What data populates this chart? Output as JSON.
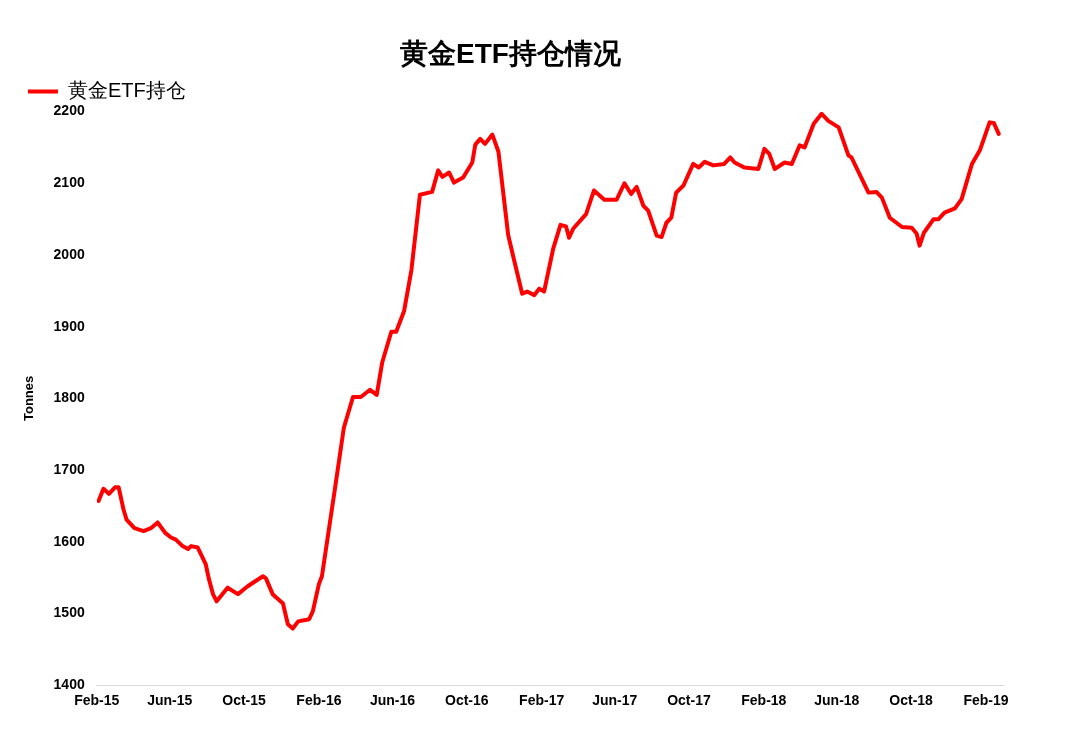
{
  "chart_data": {
    "type": "line",
    "title": "黄金ETF持仓情况",
    "ylabel": "Tonnes",
    "legend": "top left",
    "grid": false,
    "marker": "none",
    "line_style": "solid",
    "xlim": [
      "2015-02-01",
      "2019-03-01"
    ],
    "xticks": [
      {
        "value": "2015-02-01",
        "label": "Feb-15"
      },
      {
        "value": "2015-06-01",
        "label": "Jun-15"
      },
      {
        "value": "2015-10-01",
        "label": "Oct-15"
      },
      {
        "value": "2016-02-01",
        "label": "Feb-16"
      },
      {
        "value": "2016-06-01",
        "label": "Jun-16"
      },
      {
        "value": "2016-10-01",
        "label": "Oct-16"
      },
      {
        "value": "2017-02-01",
        "label": "Feb-17"
      },
      {
        "value": "2017-06-01",
        "label": "Jun-17"
      },
      {
        "value": "2017-10-01",
        "label": "Oct-17"
      },
      {
        "value": "2018-02-01",
        "label": "Feb-18"
      },
      {
        "value": "2018-06-01",
        "label": "Jun-18"
      },
      {
        "value": "2018-10-01",
        "label": "Oct-18"
      },
      {
        "value": "2019-02-01",
        "label": "Feb-19"
      }
    ],
    "ylim": [
      1400,
      2200
    ],
    "yticks": [
      1400,
      1500,
      1600,
      1700,
      1800,
      1900,
      2000,
      2100,
      2200
    ],
    "x": [
      "2015-02-04",
      "2015-02-12",
      "2015-02-21",
      "2015-03-03",
      "2015-03-09",
      "2015-03-17",
      "2015-03-22",
      "2015-04-04",
      "2015-04-19",
      "2015-05-01",
      "2015-05-12",
      "2015-05-25",
      "2015-06-03",
      "2015-06-11",
      "2015-06-22",
      "2015-07-01",
      "2015-07-06",
      "2015-07-17",
      "2015-07-30",
      "2015-08-04",
      "2015-08-11",
      "2015-08-17",
      "2015-09-04",
      "2015-09-21",
      "2015-10-07",
      "2015-11-01",
      "2015-11-06",
      "2015-11-17",
      "2015-12-04",
      "2015-12-12",
      "2015-12-20",
      "2015-12-29",
      "2016-01-16",
      "2016-01-22",
      "2016-02-01",
      "2016-02-06",
      "2016-02-27",
      "2016-03-13",
      "2016-03-28",
      "2016-04-10",
      "2016-04-25",
      "2016-05-06",
      "2016-05-15",
      "2016-05-30",
      "2016-06-07",
      "2016-06-20",
      "2016-07-02",
      "2016-07-16",
      "2016-08-05",
      "2016-08-15",
      "2016-08-22",
      "2016-09-02",
      "2016-09-10",
      "2016-09-25",
      "2016-10-10",
      "2016-10-15",
      "2016-10-23",
      "2016-10-31",
      "2016-11-12",
      "2016-11-22",
      "2016-12-08",
      "2016-12-16",
      "2016-12-31",
      "2017-01-08",
      "2017-01-20",
      "2017-01-28",
      "2017-02-05",
      "2017-02-20",
      "2017-03-04",
      "2017-03-13",
      "2017-03-18",
      "2017-03-25",
      "2017-04-15",
      "2017-04-28",
      "2017-05-15",
      "2017-06-04",
      "2017-06-17",
      "2017-06-28",
      "2017-07-07",
      "2017-07-18",
      "2017-07-26",
      "2017-08-09",
      "2017-08-17",
      "2017-08-25",
      "2017-09-02",
      "2017-09-10",
      "2017-09-22",
      "2017-10-08",
      "2017-10-17",
      "2017-10-27",
      "2017-11-10",
      "2017-11-28",
      "2017-12-08",
      "2017-12-15",
      "2017-12-31",
      "2018-01-23",
      "2018-02-02",
      "2018-02-10",
      "2018-02-19",
      "2018-03-07",
      "2018-03-19",
      "2018-04-01",
      "2018-04-09",
      "2018-04-24",
      "2018-05-07",
      "2018-05-18",
      "2018-06-04",
      "2018-06-20",
      "2018-06-25",
      "2018-07-23",
      "2018-08-05",
      "2018-08-14",
      "2018-08-27",
      "2018-09-16",
      "2018-10-02",
      "2018-10-10",
      "2018-10-15",
      "2018-10-22",
      "2018-11-07",
      "2018-11-15",
      "2018-11-25",
      "2018-12-12",
      "2018-12-23",
      "2019-01-09",
      "2019-01-22",
      "2019-02-07",
      "2019-02-14",
      "2019-02-22"
    ],
    "series": [
      {
        "name": "黄金ETF持仓",
        "color": "#ff0000",
        "values": [
          1657,
          1674,
          1667,
          1676,
          1676,
          1645,
          1631,
          1619,
          1615,
          1619,
          1627,
          1612,
          1606,
          1603,
          1594,
          1590,
          1594,
          1592,
          1569,
          1549,
          1527,
          1517,
          1536,
          1527,
          1538,
          1552,
          1549,
          1527,
          1514,
          1485,
          1479,
          1489,
          1492,
          1503,
          1541,
          1552,
          1672,
          1759,
          1802,
          1802,
          1812,
          1805,
          1850,
          1893,
          1893,
          1922,
          1979,
          2084,
          2088,
          2118,
          2109,
          2115,
          2101,
          2108,
          2129,
          2154,
          2162,
          2155,
          2168,
          2144,
          2028,
          1999,
          1946,
          1949,
          1944,
          1953,
          1949,
          2009,
          2042,
          2040,
          2024,
          2037,
          2057,
          2090,
          2077,
          2077,
          2100,
          2085,
          2095,
          2069,
          2062,
          2027,
          2025,
          2045,
          2052,
          2087,
          2097,
          2127,
          2122,
          2130,
          2125,
          2127,
          2136,
          2129,
          2122,
          2120,
          2148,
          2141,
          2120,
          2129,
          2127,
          2153,
          2150,
          2183,
          2197,
          2187,
          2178,
          2139,
          2136,
          2087,
          2088,
          2080,
          2052,
          2039,
          2038,
          2030,
          2013,
          2031,
          2050,
          2050,
          2059,
          2065,
          2078,
          2127,
          2146,
          2185,
          2184,
          2169
        ]
      }
    ]
  }
}
